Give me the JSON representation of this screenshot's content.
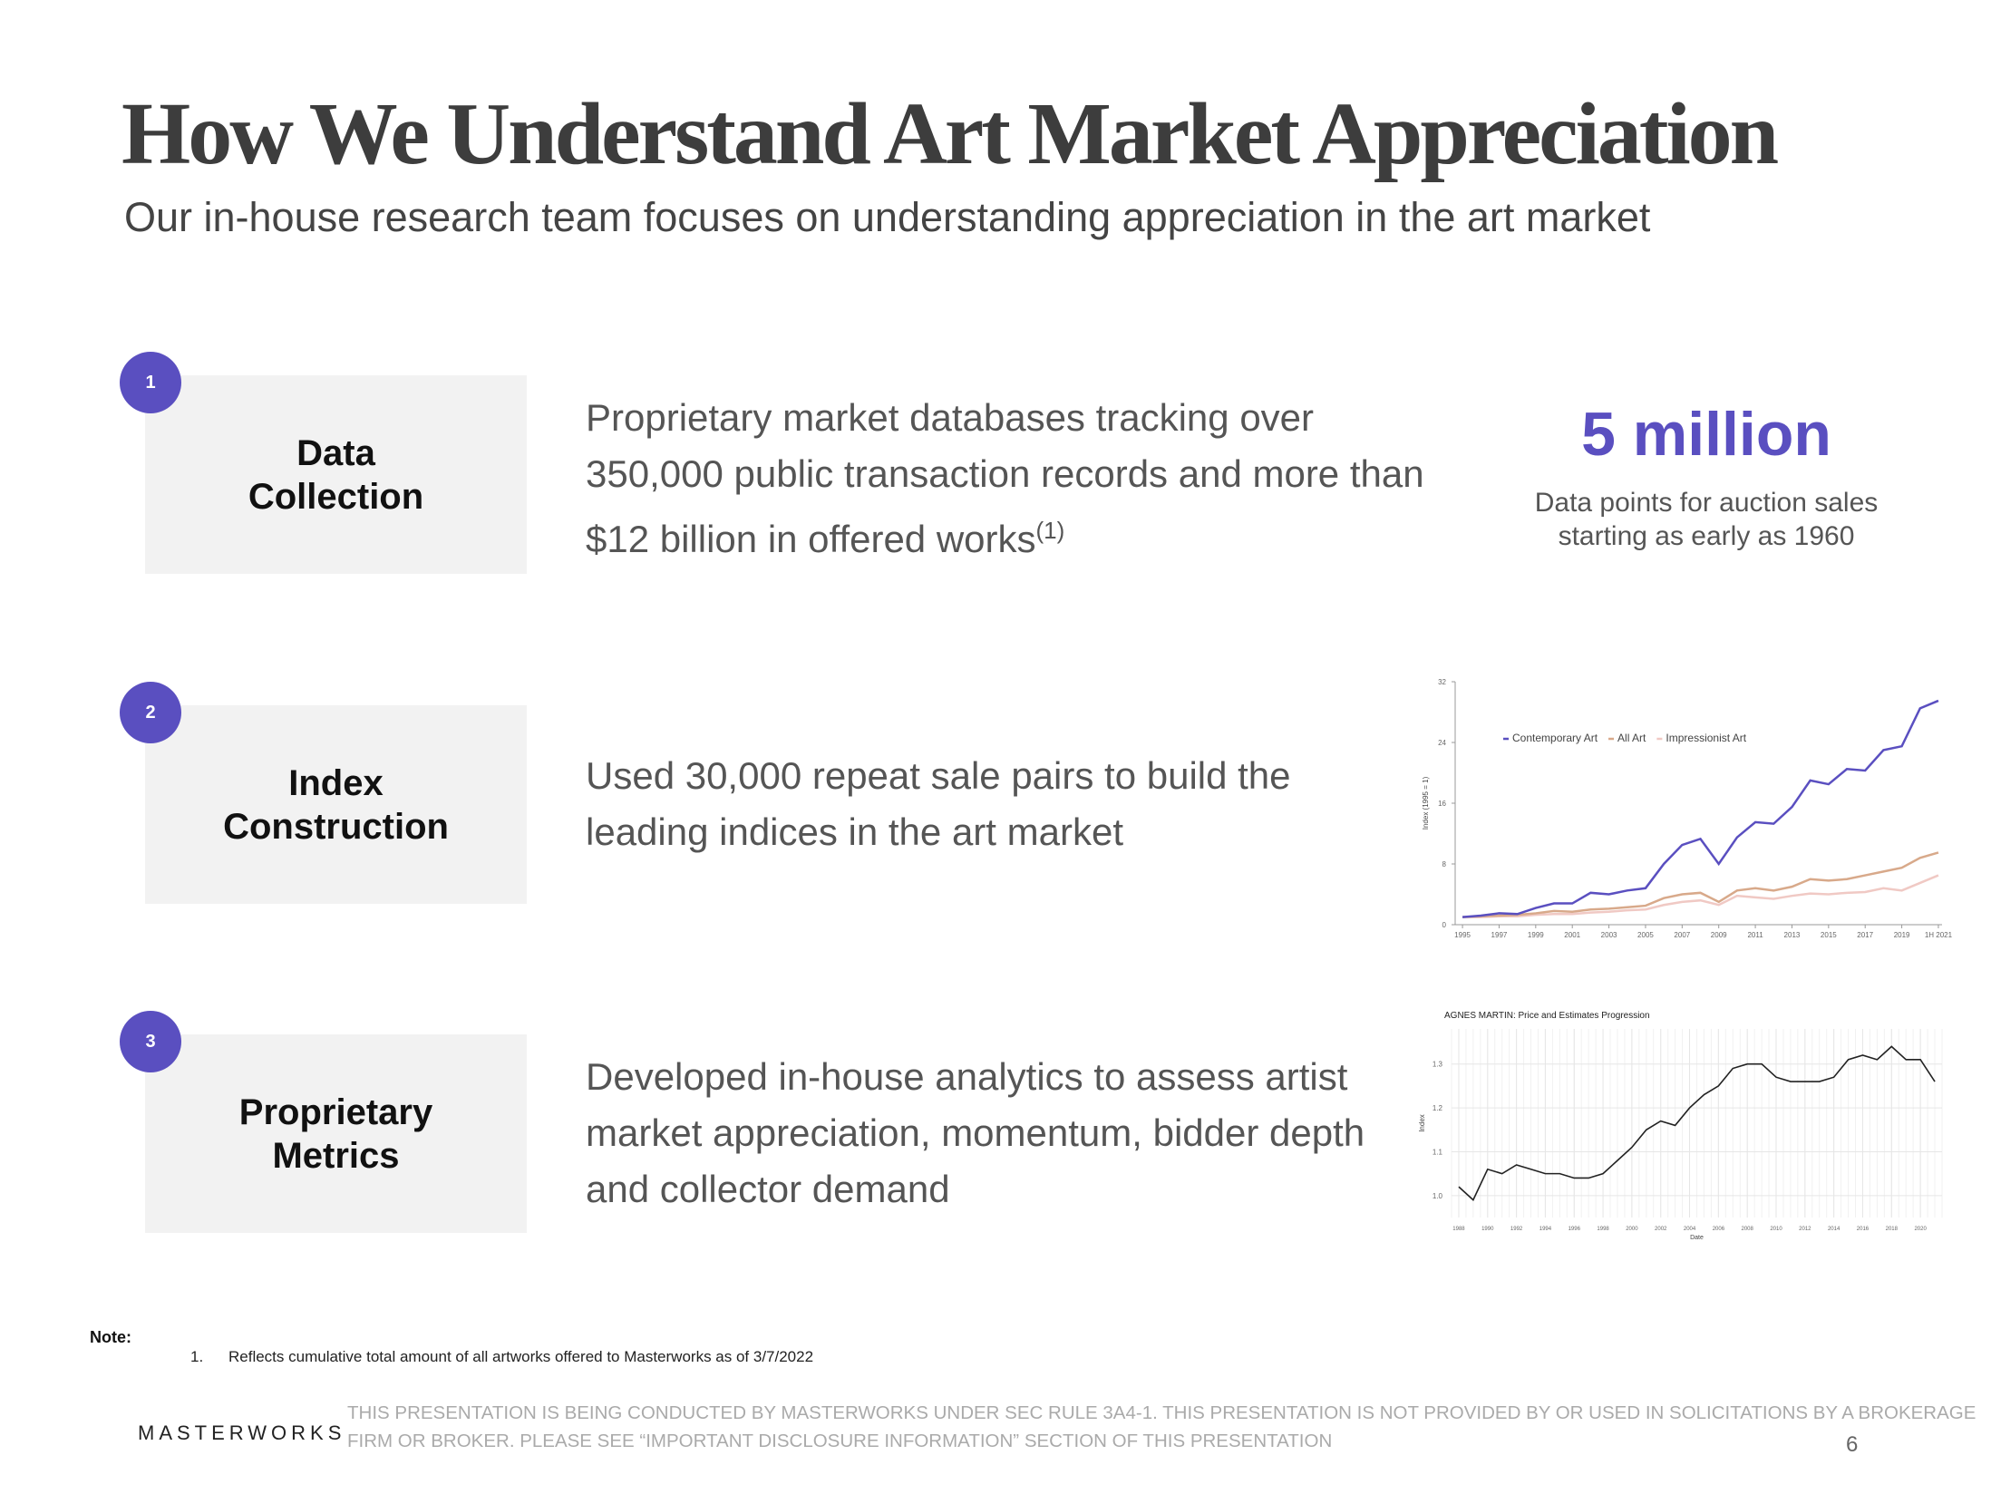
{
  "header": {
    "title": "How We Understand Art Market Appreciation",
    "subtitle": "Our in-house research team focuses on understanding appreciation in the art market"
  },
  "steps": [
    {
      "number": "1",
      "label": [
        "Data",
        "Collection"
      ],
      "description": [
        "Proprietary market databases tracking over",
        "350,000 public transaction records and more than",
        "$12 billion in offered works"
      ],
      "footnote_ref": "(1)"
    },
    {
      "number": "2",
      "label": [
        "Index",
        "Construction"
      ],
      "description": [
        "Used 30,000 repeat sale pairs to build the",
        "leading indices in the art market"
      ]
    },
    {
      "number": "3",
      "label": [
        "Proprietary",
        "Metrics"
      ],
      "description": [
        "Developed in-house analytics to assess artist",
        "market appreciation, momentum, bidder depth",
        "and collector demand"
      ]
    }
  ],
  "highlight": {
    "value": "5 million",
    "caption": [
      "Data points for auction sales",
      "starting as early as 1960"
    ]
  },
  "chart_data": [
    {
      "type": "line",
      "y_label": "Index (1995 = 1)",
      "x": [
        1995,
        1996,
        1997,
        1998,
        1999,
        2000,
        2001,
        2002,
        2003,
        2004,
        2005,
        2006,
        2007,
        2008,
        2009,
        2010,
        2011,
        2012,
        2013,
        2014,
        2015,
        2016,
        2017,
        2018,
        2019,
        2020,
        2021
      ],
      "series": [
        {
          "name": "Contemporary Art",
          "color": "#5a4fc0",
          "values": [
            1,
            1.2,
            1.5,
            1.4,
            2.2,
            2.8,
            2.8,
            4.2,
            4.0,
            4.5,
            4.8,
            8.0,
            10.5,
            11.3,
            8.0,
            11.5,
            13.5,
            13.3,
            15.5,
            19.0,
            18.5,
            20.5,
            20.3,
            23.0,
            23.5,
            28.5,
            29.5
          ]
        },
        {
          "name": "All Art",
          "color": "#d8a98a",
          "values": [
            1,
            1.1,
            1.2,
            1.3,
            1.5,
            1.8,
            1.7,
            2.0,
            2.1,
            2.3,
            2.5,
            3.5,
            4.0,
            4.2,
            3.0,
            4.5,
            4.8,
            4.5,
            5.0,
            6.0,
            5.8,
            6.0,
            6.5,
            7.0,
            7.5,
            8.8,
            9.5
          ]
        },
        {
          "name": "Impressionist Art",
          "color": "#f0c9c4",
          "values": [
            1,
            1.0,
            1.1,
            1.1,
            1.3,
            1.4,
            1.4,
            1.6,
            1.7,
            1.9,
            2.0,
            2.6,
            3.0,
            3.2,
            2.6,
            3.8,
            3.6,
            3.4,
            3.8,
            4.1,
            4.0,
            4.2,
            4.3,
            4.8,
            4.5,
            5.5,
            6.5
          ]
        }
      ],
      "xlim": [
        1994.6,
        2021.2
      ],
      "xticks": [
        1995,
        1997,
        1999,
        2001,
        2003,
        2005,
        2007,
        2009,
        2011,
        2013,
        2015,
        2017,
        2019,
        {
          "value": 2021,
          "label": "1H 2021"
        }
      ],
      "ylim": [
        0,
        32
      ],
      "yticks": [
        0,
        8,
        16,
        24,
        32
      ],
      "grid": false
    },
    {
      "type": "line",
      "title": "AGNES MARTIN: Price and Estimates Progression",
      "x_label": "Date",
      "y_label": "Index",
      "x": [
        1988,
        1989,
        1990,
        1991,
        1992,
        1993,
        1994,
        1995,
        1996,
        1997,
        1998,
        1999,
        2000,
        2001,
        2002,
        2003,
        2004,
        2005,
        2006,
        2007,
        2008,
        2009,
        2010,
        2011,
        2012,
        2013,
        2014,
        2015,
        2016,
        2017,
        2018,
        2019,
        2020,
        2021
      ],
      "values": [
        1.02,
        0.99,
        1.06,
        1.05,
        1.07,
        1.06,
        1.05,
        1.05,
        1.04,
        1.04,
        1.05,
        1.08,
        1.11,
        1.15,
        1.17,
        1.16,
        1.2,
        1.23,
        1.25,
        1.29,
        1.3,
        1.3,
        1.27,
        1.26,
        1.26,
        1.26,
        1.27,
        1.31,
        1.32,
        1.31,
        1.34,
        1.31,
        1.31,
        1.26
      ],
      "color": "#222222",
      "xlim": [
        1987.5,
        2021.5
      ],
      "xticks": [
        1988,
        1990,
        1992,
        1994,
        1996,
        1998,
        2000,
        2002,
        2004,
        2006,
        2008,
        2010,
        2012,
        2014,
        2016,
        2018,
        2020
      ],
      "ylim": [
        0.95,
        1.38
      ],
      "yticks": [
        {
          "value": 1,
          "label": "1.0"
        },
        1.1,
        1.2,
        1.3
      ],
      "grid": true
    }
  ],
  "note": {
    "label": "Note:",
    "items": [
      {
        "number": "1.",
        "text": "Reflects cumulative total amount of all artworks offered to Masterworks as of 3/7/2022"
      }
    ]
  },
  "footer": {
    "logo": "MASTERWORKS",
    "disclaimer": [
      "THIS PRESENTATION  IS BEING CONDUCTED BY MASTERWORKS UNDER SEC RULE 3A4-1. THIS PRESENTATION  IS NOT PROVIDED BY OR USED IN SOLICITATIONS BY A BROKERAGE",
      "FIRM OR BROKER. PLEASE SEE “IMPORTANT DISCLOSURE INFORMATION” SECTION OF THIS PRESENTATION"
    ],
    "page": "6"
  }
}
